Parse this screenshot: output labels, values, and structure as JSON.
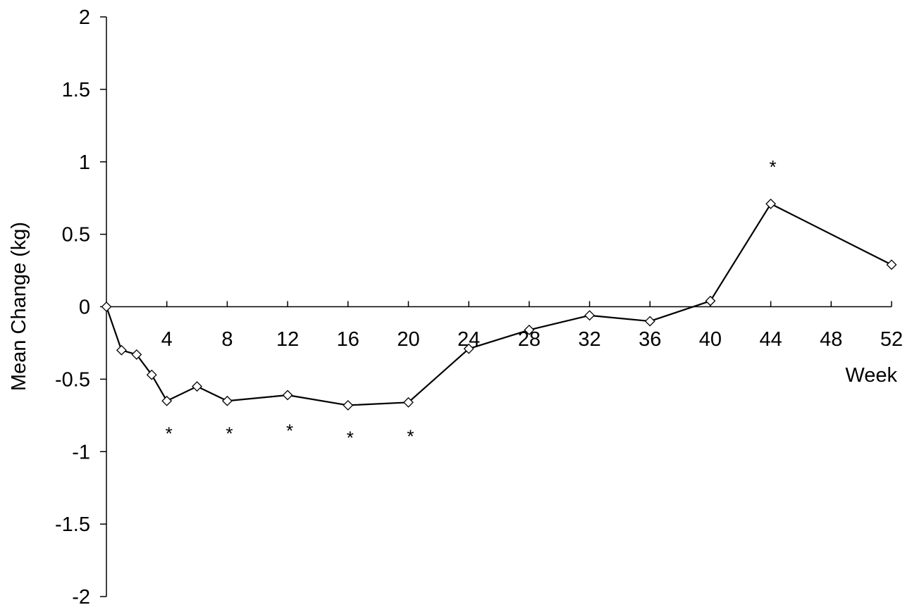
{
  "chart_data": {
    "type": "line",
    "title": "",
    "xlabel": "Week",
    "ylabel": "Mean Change (kg)",
    "xlim": [
      0,
      52
    ],
    "ylim": [
      -2,
      2
    ],
    "x_ticks": [
      4,
      8,
      12,
      16,
      20,
      24,
      28,
      32,
      36,
      40,
      44,
      48,
      52
    ],
    "x_tick_labels": [
      "4",
      "8",
      "12",
      "16",
      "20",
      "24",
      "28",
      "32",
      "36",
      "40",
      "44",
      "48",
      "52"
    ],
    "y_ticks": [
      -2,
      -1.5,
      -1,
      -0.5,
      0,
      0.5,
      1,
      1.5,
      2
    ],
    "y_tick_labels": [
      "-2",
      "-1.5",
      "-1",
      "-0.5",
      "0",
      "0.5",
      "1",
      "1.5",
      "2"
    ],
    "grid": false,
    "legend": "none",
    "marker": "open-diamond",
    "line_color": "#000000",
    "series": [
      {
        "x": [
          0,
          1,
          2,
          3,
          4,
          6,
          8,
          12,
          16,
          20,
          24,
          28,
          32,
          36,
          40,
          44,
          52
        ],
        "y": [
          0,
          -0.3,
          -0.33,
          -0.47,
          -0.65,
          -0.55,
          -0.65,
          -0.61,
          -0.68,
          -0.66,
          -0.29,
          -0.16,
          -0.06,
          -0.1,
          0.04,
          0.71,
          0.29
        ]
      }
    ],
    "annotations": [
      {
        "text": "*",
        "x": 4,
        "y": -0.87
      },
      {
        "text": "*",
        "x": 8,
        "y": -0.87
      },
      {
        "text": "*",
        "x": 12,
        "y": -0.85
      },
      {
        "text": "*",
        "x": 16,
        "y": -0.9
      },
      {
        "text": "*",
        "x": 20,
        "y": -0.89
      },
      {
        "text": "*",
        "x": 44,
        "y": 0.97
      }
    ]
  }
}
